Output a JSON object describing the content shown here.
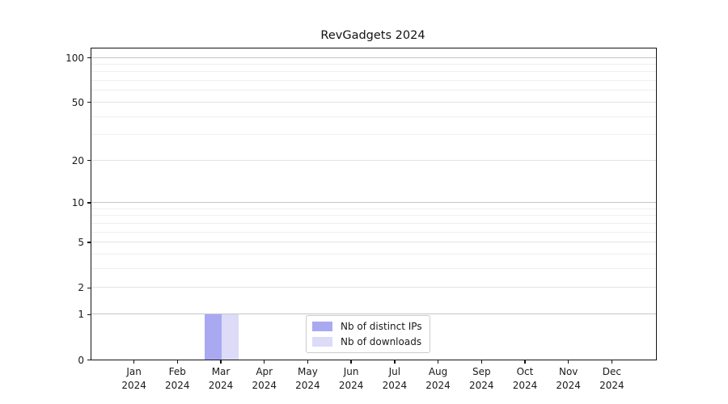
{
  "chart_data": {
    "type": "bar",
    "title": "RevGadgets 2024",
    "categories": [
      "Jan 2024",
      "Feb 2024",
      "Mar 2024",
      "Apr 2024",
      "May 2024",
      "Jun 2024",
      "Jul 2024",
      "Aug 2024",
      "Sep 2024",
      "Oct 2024",
      "Nov 2024",
      "Dec 2024"
    ],
    "series": [
      {
        "name": "Nb of distinct IPs",
        "color": "#a9a9f2",
        "values": [
          0,
          0,
          1,
          0,
          0,
          0,
          0,
          0,
          0,
          0,
          0,
          0
        ]
      },
      {
        "name": "Nb of downloads",
        "color": "#dcdcf8",
        "values": [
          0,
          0,
          1,
          0,
          0,
          0,
          0,
          0,
          0,
          0,
          0,
          0
        ]
      }
    ],
    "yscale": "log1p",
    "ylim": [
      0,
      100
    ],
    "yticks": [
      0,
      1,
      2,
      5,
      10,
      20,
      50,
      100
    ],
    "yticks_minor": [
      3,
      4,
      6,
      7,
      8,
      9,
      30,
      40,
      60,
      70,
      80,
      90
    ],
    "grid": "horizontal",
    "legend_position": "lower center"
  }
}
